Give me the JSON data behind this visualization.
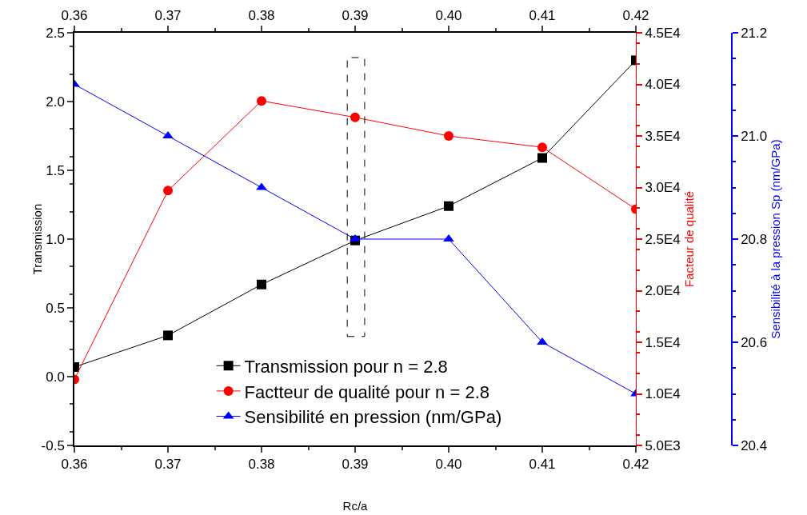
{
  "chart_data": {
    "type": "line",
    "xlabel": "Rc/a",
    "ylabel": "Transmission",
    "y2label": "Facteur de qualité",
    "y3label": "Sensibilité à la pression Sp (nm/GPa)",
    "x": [
      0.36,
      0.37,
      0.38,
      0.39,
      0.4,
      0.41,
      0.42
    ],
    "xlim": [
      0.36,
      0.42
    ],
    "xticks": [
      {
        "value": 0.36,
        "label": "0.36"
      },
      {
        "value": 0.37,
        "label": "0.37"
      },
      {
        "value": 0.38,
        "label": "0.38"
      },
      {
        "value": 0.39,
        "label": "0.39"
      },
      {
        "value": 0.4,
        "label": "0.40"
      },
      {
        "value": 0.41,
        "label": "0.41"
      },
      {
        "value": 0.42,
        "label": "0.42"
      }
    ],
    "x2lim": [
      0.36,
      0.42
    ],
    "x2ticks": [
      {
        "value": 0.36,
        "label": "0.36"
      },
      {
        "value": 0.37,
        "label": "0.37"
      },
      {
        "value": 0.38,
        "label": "0.38"
      },
      {
        "value": 0.39,
        "label": "0.39"
      },
      {
        "value": 0.4,
        "label": "0.40"
      },
      {
        "value": 0.41,
        "label": "0.41"
      },
      {
        "value": 0.42,
        "label": "0.42"
      }
    ],
    "ylim": [
      -0.5,
      2.5
    ],
    "yticks": [
      -0.5,
      {
        "value": 0,
        "label": "0.0"
      },
      0.5,
      {
        "value": 1,
        "label": "1.0"
      },
      1.5,
      {
        "value": 2,
        "label": "2.0"
      },
      2.5
    ],
    "y2lim": [
      5000,
      45000
    ],
    "y2ticks": [
      {
        "value": 5000,
        "label": "5.0E3"
      },
      {
        "value": 10000,
        "label": "1.0E4"
      },
      {
        "value": 15000,
        "label": "1.5E4"
      },
      {
        "value": 20000,
        "label": "2.0E4"
      },
      {
        "value": 25000,
        "label": "2.5E4"
      },
      {
        "value": 30000,
        "label": "3.0E4"
      },
      {
        "value": 35000,
        "label": "3.5E4"
      },
      {
        "value": 40000,
        "label": "4.0E4"
      },
      {
        "value": 45000,
        "label": "4.5E4"
      }
    ],
    "y3lim": [
      20.4,
      21.2
    ],
    "y3ticks": [
      20.4,
      20.6,
      20.8,
      {
        "value": 21,
        "label": "21.0"
      },
      21.2
    ],
    "series": [
      {
        "name": "Transmission pour n = 2.8",
        "color": "#000000",
        "marker": "square",
        "values": [
          0.07,
          0.3,
          0.67,
          0.99,
          1.24,
          1.59,
          2.3
        ]
      },
      {
        "name": "Factteur de qualité pour n = 2.8",
        "color": "#ff0000",
        "marker": "circle",
        "axis": "y2",
        "values": [
          11400,
          29700,
          38400,
          36800,
          35000,
          33900,
          27900
        ]
      },
      {
        "name": "Sensibilité en pression (nm/GPa)",
        "color": "#0000ff",
        "marker": "triangle",
        "axis": "y3",
        "values": [
          21.1,
          21.0,
          20.9,
          20.8,
          20.8,
          20.6,
          20.5
        ]
      }
    ],
    "grid": false,
    "legend": "bottom",
    "line_style": "solid"
  }
}
